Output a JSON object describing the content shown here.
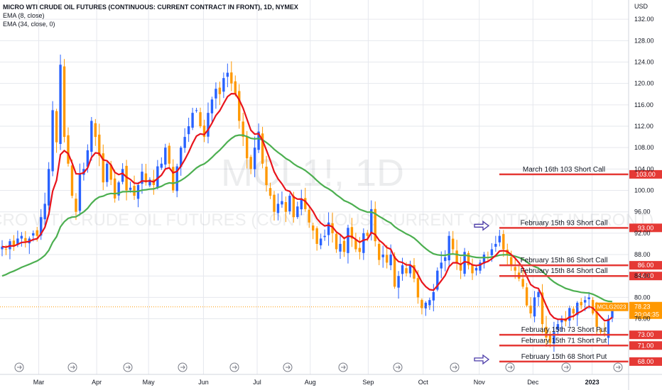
{
  "header": {
    "title": "MICRO WTI CRUDE OIL FUTURES (CONTINUOUS: CURRENT CONTRACT IN FRONT), 1D, NYMEX",
    "indicators": [
      "EMA (8, close)",
      "EMA (34, close, 0)"
    ]
  },
  "watermark": {
    "symbol": "MCL1!, 1D",
    "description": "MICRO WTI CRUDE OIL FUTURES (CONTINUOUS: CURRENT CONTRACT IN FRONT)"
  },
  "chart_data": {
    "type": "candlestick",
    "currency_label": "USD",
    "y_ticks": [
      76,
      80,
      84,
      88,
      92,
      96,
      100,
      104,
      108,
      112,
      116,
      120,
      124,
      128,
      132
    ],
    "x_labels": [
      "Mar",
      "Apr",
      "May",
      "Jun",
      "Jul",
      "Aug",
      "Sep",
      "Oct",
      "Nov",
      "Dec",
      "2023"
    ],
    "ylim": [
      65.6,
      135.6
    ],
    "grid": true,
    "colors": {
      "up": "#2962ff",
      "down": "#ff9800",
      "ema8": "#e8141c",
      "ema34": "#4caf50",
      "level_line": "#e53935",
      "arrow": "#4a3aa8"
    },
    "current_price": {
      "symbol": "MCLG2023",
      "price": "78.23",
      "countdown": "20:04:35"
    },
    "levels": [
      {
        "label": "March 16th 103 Short Call",
        "price": 103.0,
        "price_text": "103.00",
        "arrow": false
      },
      {
        "label": "February 15th 93 Short Call",
        "price": 93.0,
        "price_text": "93.00",
        "arrow": true
      },
      {
        "label": "February 15th 86 Short Call",
        "price": 86.0,
        "price_text": "86.00",
        "arrow": false
      },
      {
        "label": "February 15th 84 Short Call",
        "price": 84.0,
        "price_text": "84.00",
        "arrow": false
      },
      {
        "label": "February 15th 73 Short Put",
        "price": 73.0,
        "price_text": "73.00",
        "arrow": false
      },
      {
        "label": "February 15th 71 Short Put",
        "price": 71.0,
        "price_text": "71.00",
        "arrow": false
      },
      {
        "label": "February 15th 68 Short Put",
        "price": 68.0,
        "price_text": "68.00",
        "arrow": true
      }
    ],
    "close_series": [
      89.5,
      89.0,
      90.5,
      89.5,
      91.0,
      91.5,
      90.5,
      91.0,
      92.0,
      91.5,
      95.0,
      97.5,
      104.0,
      115.0,
      109.0,
      123.5,
      110.0,
      105.0,
      99.0,
      96.0,
      103.0,
      104.0,
      107.5,
      113.0,
      110.0,
      106.5,
      101.5,
      105.0,
      102.0,
      98.5,
      101.5,
      104.0,
      100.0,
      100.5,
      99.0,
      101.0,
      103.5,
      101.5,
      102.0,
      101.0,
      104.5,
      105.0,
      108.0,
      105.0,
      100.0,
      104.5,
      108.0,
      110.0,
      112.0,
      114.5,
      115.0,
      112.0,
      110.0,
      114.5,
      117.0,
      119.0,
      118.0,
      121.0,
      122.0,
      120.0,
      118.0,
      113.0,
      110.0,
      106.0,
      104.0,
      108.0,
      111.0,
      105.0,
      101.0,
      99.0,
      96.0,
      97.5,
      98.0,
      96.0,
      99.0,
      95.0,
      97.0,
      98.5,
      96.5,
      94.0,
      92.5,
      90.0,
      91.0,
      91.5,
      94.0,
      92.0,
      89.0,
      90.0,
      88.5,
      93.0,
      91.0,
      89.0,
      88.5,
      92.0,
      91.5,
      96.5,
      90.5,
      87.0,
      88.0,
      86.5,
      88.0,
      82.0,
      84.0,
      86.0,
      84.5,
      86.0,
      83.5,
      80.0,
      78.0,
      79.0,
      79.5,
      81.0,
      85.0,
      86.5,
      87.5,
      91.5,
      89.0,
      86.5,
      85.0,
      88.5,
      86.0,
      84.5,
      85.5,
      86.5,
      88.0,
      87.5,
      89.0,
      90.0,
      91.5,
      89.0,
      88.0,
      86.0,
      85.0,
      83.5,
      82.0,
      78.5,
      77.0,
      80.0,
      81.0,
      75.0,
      72.5,
      71.5,
      73.5,
      75.0,
      76.0,
      75.5,
      78.0,
      77.0,
      79.0,
      78.5,
      79.5,
      80.0,
      77.0,
      74.5,
      73.5,
      73.0,
      76.0,
      78.2
    ]
  }
}
